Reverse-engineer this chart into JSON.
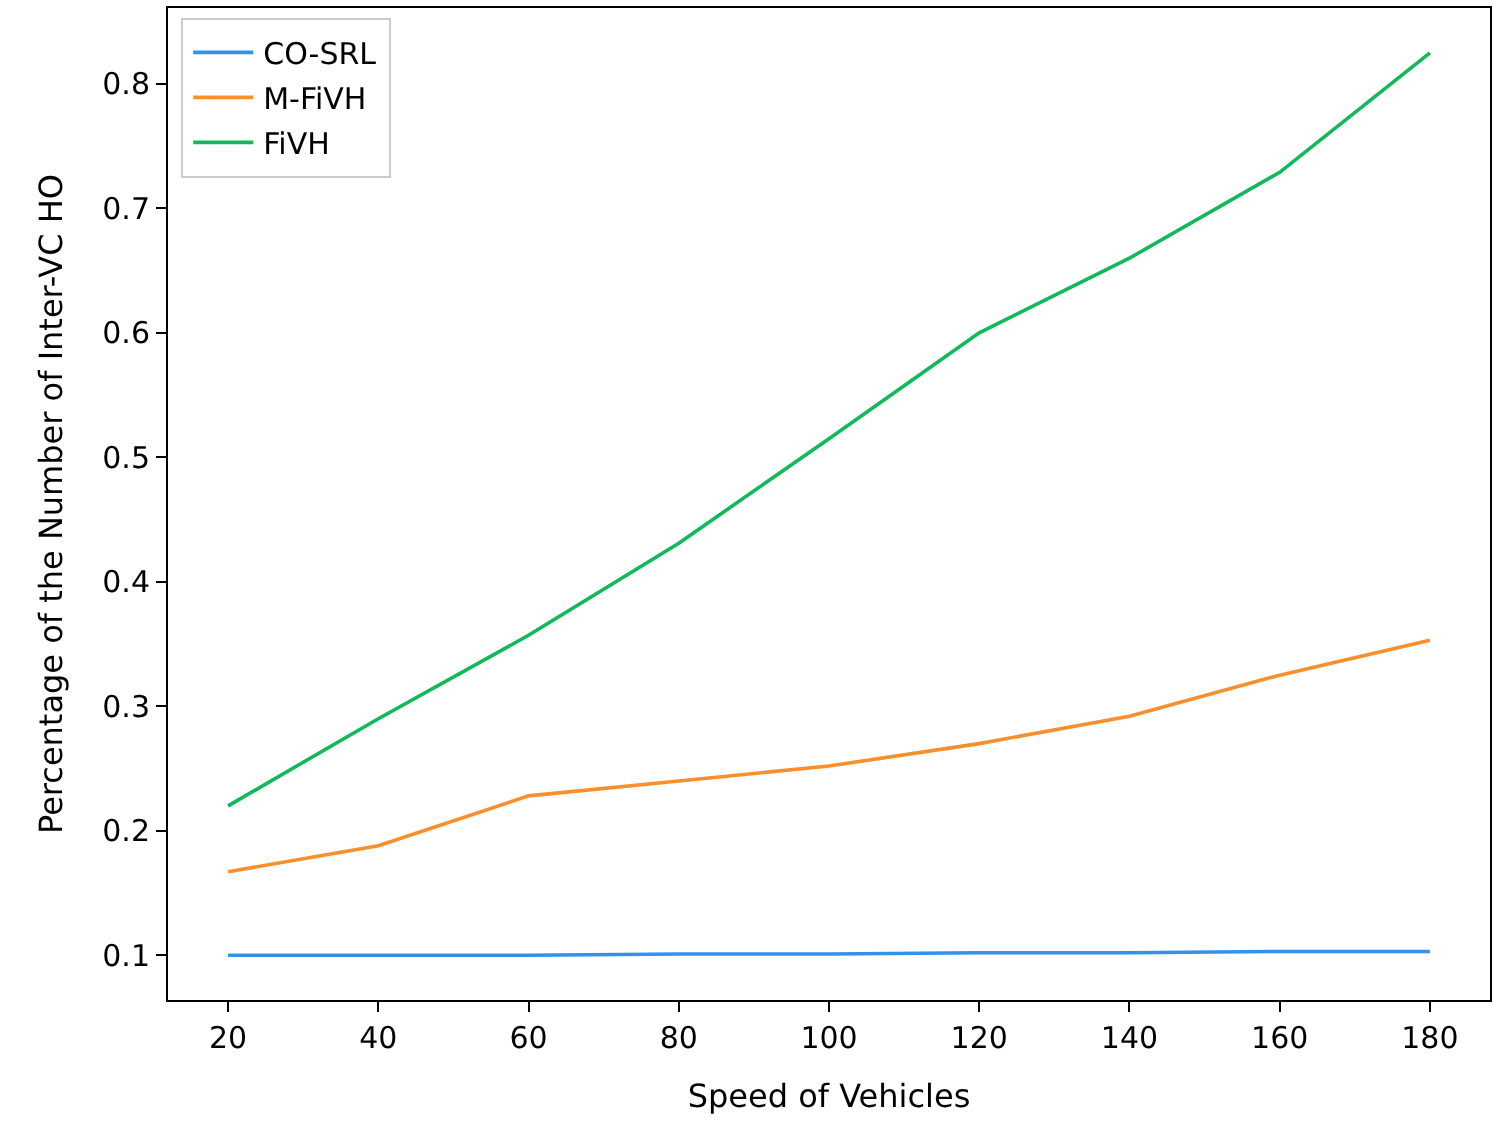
{
  "chart_data": {
    "type": "line",
    "xlabel": "Speed of Vehicles",
    "ylabel": "Percentage of the Number of Inter-VC HO",
    "x": [
      20,
      40,
      60,
      80,
      100,
      120,
      140,
      160,
      180
    ],
    "series": [
      {
        "name": "CO-SRL",
        "color": "#3391ec",
        "values": [
          0.1,
          0.1,
          0.1,
          0.101,
          0.101,
          0.102,
          0.102,
          0.103,
          0.103
        ]
      },
      {
        "name": "M-FiVH",
        "color": "#f98f2c",
        "values": [
          0.167,
          0.188,
          0.228,
          0.24,
          0.252,
          0.27,
          0.292,
          0.325,
          0.353
        ]
      },
      {
        "name": "FiVH",
        "color": "#10b95a",
        "values": [
          0.22,
          0.29,
          0.357,
          0.431,
          0.515,
          0.6,
          0.66,
          0.729,
          0.825
        ]
      }
    ],
    "xlim": [
      12,
      188
    ],
    "xticks": [
      20,
      40,
      60,
      80,
      100,
      120,
      140,
      160,
      180
    ],
    "ylim": [
      0.064,
      0.861
    ],
    "yticks": [
      0.1,
      0.2,
      0.3,
      0.4,
      0.5,
      0.6,
      0.7,
      0.8
    ],
    "legend": "top left"
  }
}
